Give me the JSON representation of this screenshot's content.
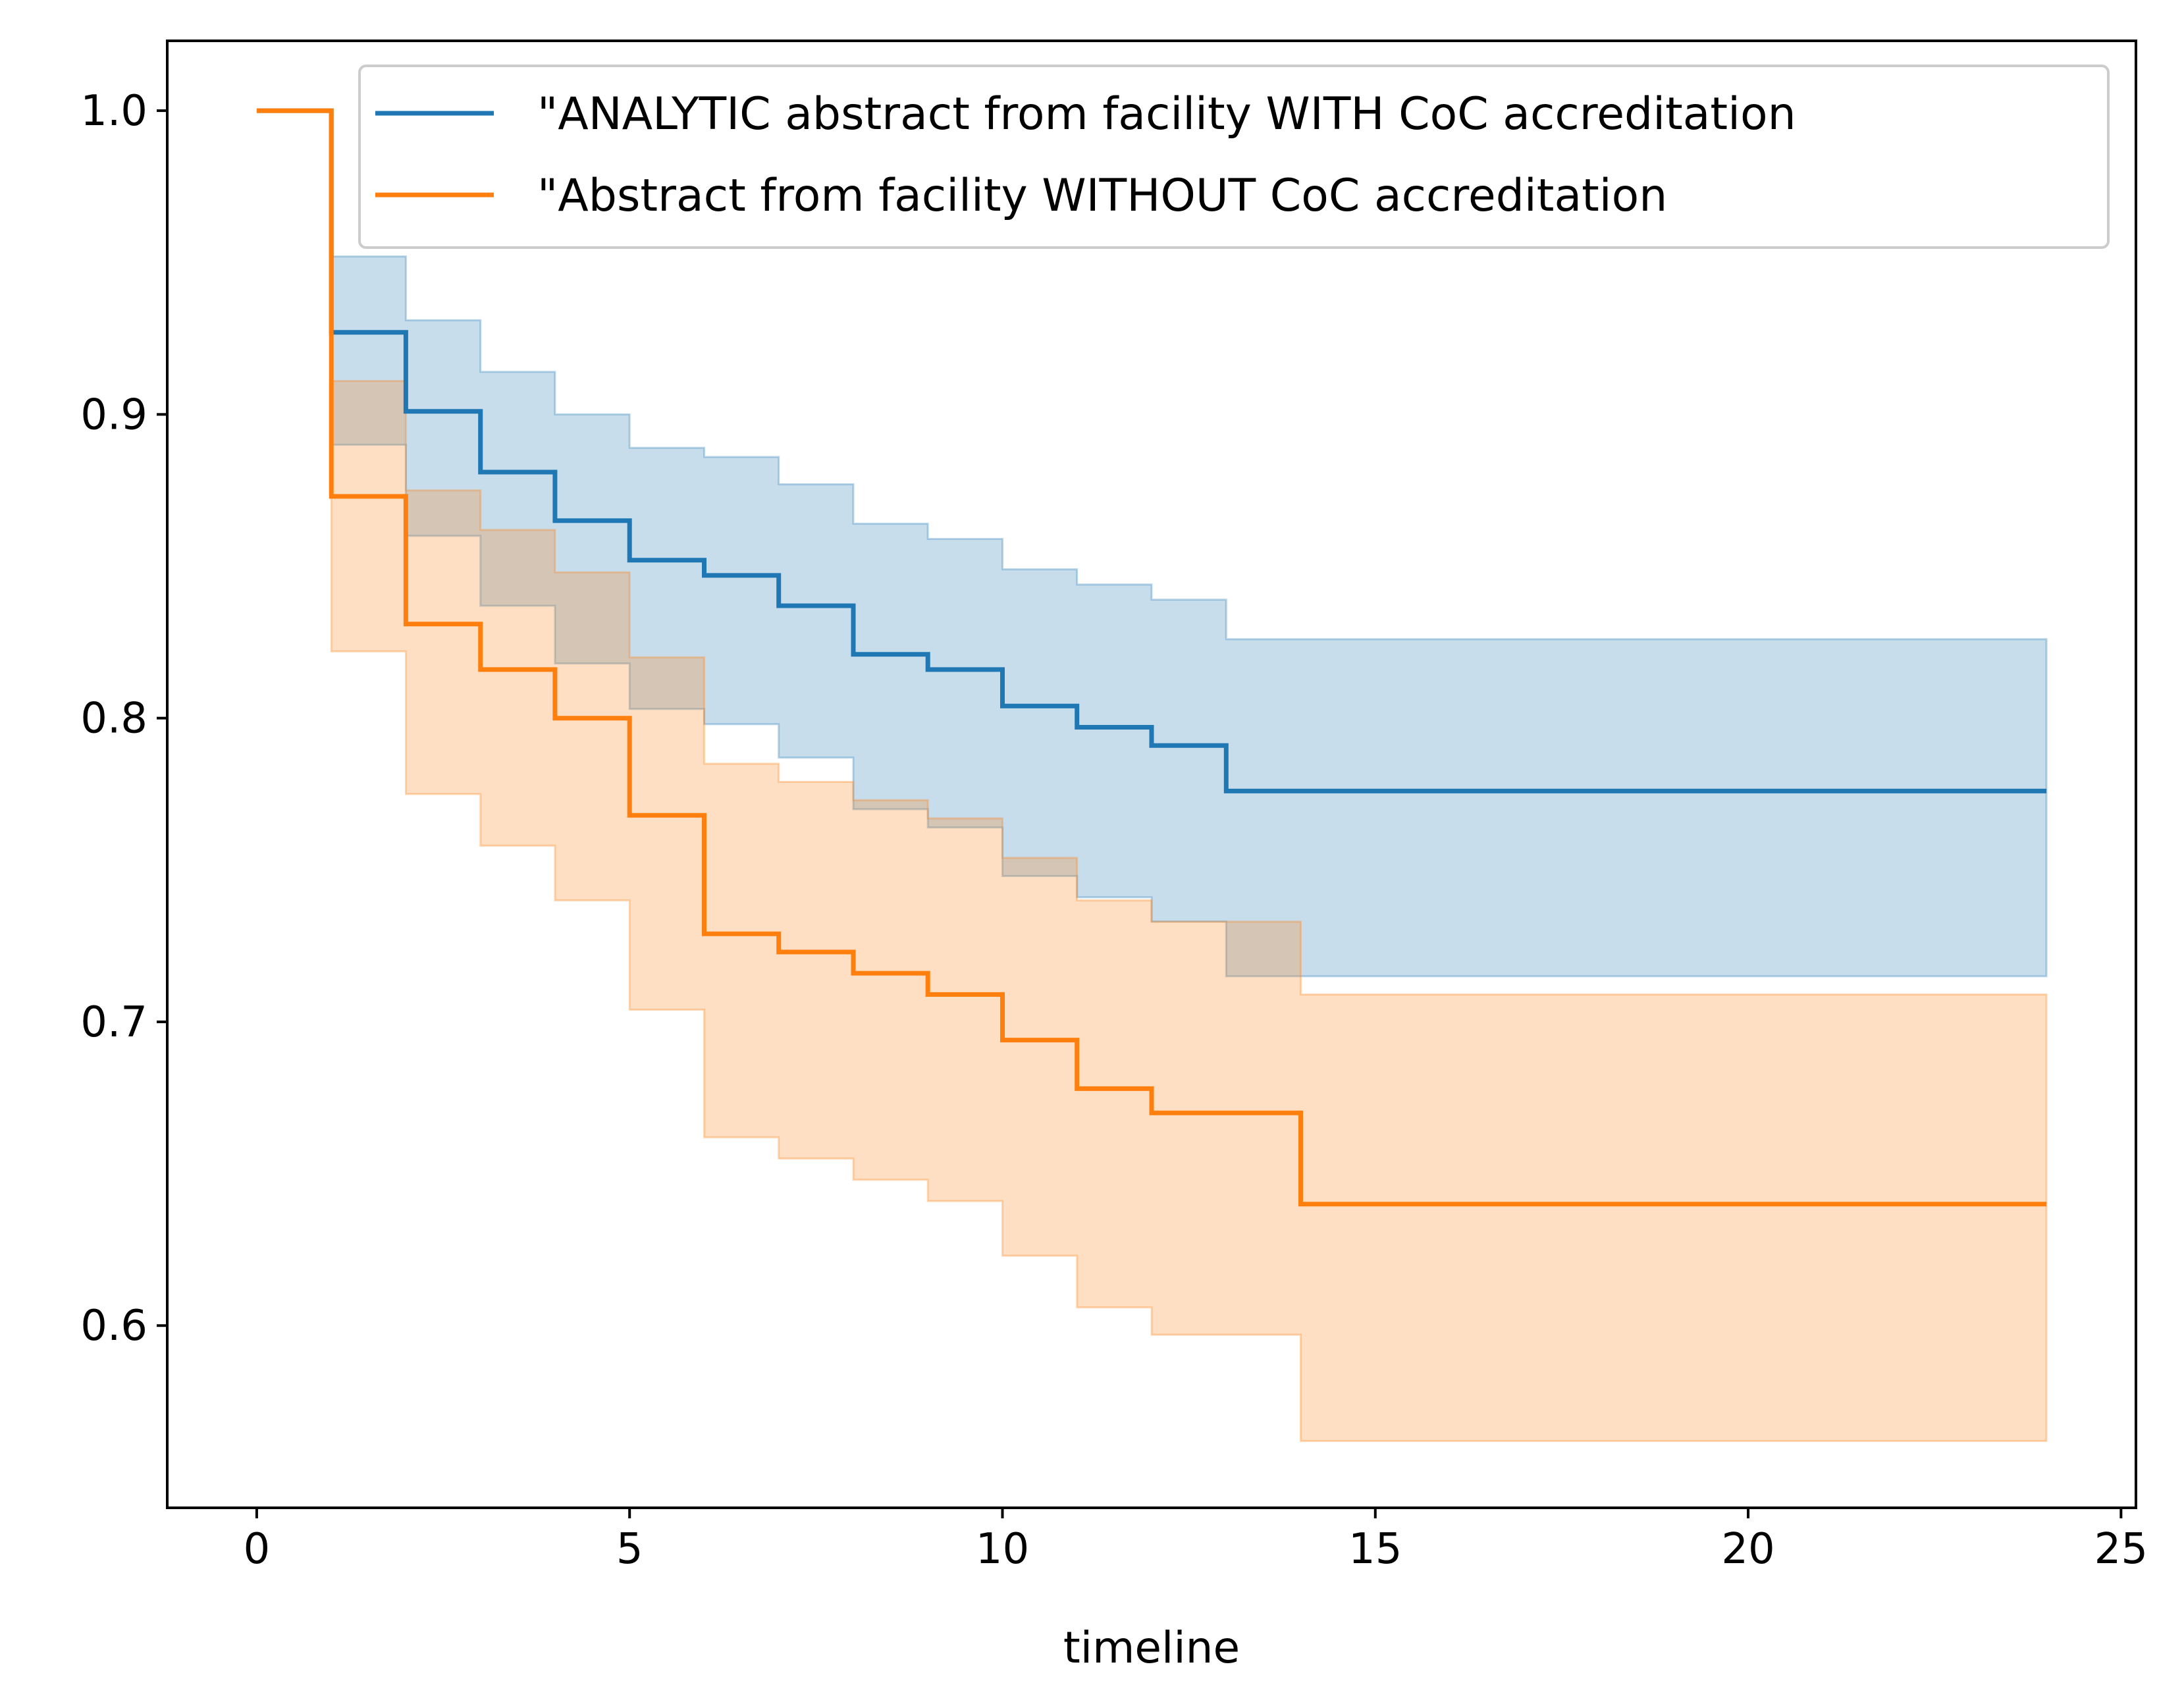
{
  "chart_data": {
    "type": "line",
    "subtype": "step (Kaplan-Meier survival curves with confidence bands)",
    "title": "",
    "xlabel": "timeline",
    "ylabel": "",
    "xlim": [
      -1.2,
      25.2
    ],
    "ylim": [
      0.54,
      1.023
    ],
    "xticks": [
      0,
      5,
      10,
      15,
      20,
      25
    ],
    "yticks": [
      0.6,
      0.7,
      0.8,
      0.9,
      1.0
    ],
    "xtick_labels": [
      "0",
      "5",
      "10",
      "15",
      "20",
      "25"
    ],
    "ytick_labels": [
      "0.6",
      "0.7",
      "0.8",
      "0.9",
      "1.0"
    ],
    "grid": false,
    "legend_position": "top-right",
    "series": [
      {
        "name": "\"ANALYTIC abstract from facility WITH CoC accreditation",
        "color": "#1f77b4",
        "x": [
          0,
          1,
          2,
          3,
          4,
          5,
          6,
          7,
          8,
          9,
          10,
          11,
          12,
          13,
          14,
          24
        ],
        "survival": [
          1.0,
          0.927,
          0.901,
          0.881,
          0.865,
          0.852,
          0.847,
          0.837,
          0.821,
          0.816,
          0.804,
          0.797,
          0.791,
          0.776,
          0.776,
          0.776
        ],
        "ci_upper": [
          1.0,
          0.952,
          0.931,
          0.914,
          0.9,
          0.889,
          0.886,
          0.877,
          0.864,
          0.859,
          0.849,
          0.844,
          0.839,
          0.826,
          0.826,
          0.826
        ],
        "ci_lower": [
          1.0,
          0.89,
          0.86,
          0.837,
          0.818,
          0.803,
          0.798,
          0.787,
          0.77,
          0.764,
          0.748,
          0.741,
          0.733,
          0.715,
          0.715,
          0.715
        ]
      },
      {
        "name": "\"Abstract from facility WITHOUT CoC accreditation",
        "color": "#ff7f0e",
        "x": [
          0,
          1,
          2,
          3,
          4,
          5,
          6,
          7,
          8,
          9,
          10,
          11,
          12,
          13,
          14,
          24
        ],
        "survival": [
          1.0,
          0.873,
          0.831,
          0.816,
          0.8,
          0.768,
          0.729,
          0.723,
          0.716,
          0.709,
          0.694,
          0.678,
          0.67,
          0.67,
          0.64,
          0.64
        ],
        "ci_upper": [
          1.0,
          0.911,
          0.875,
          0.862,
          0.848,
          0.82,
          0.785,
          0.779,
          0.773,
          0.767,
          0.754,
          0.74,
          0.733,
          0.733,
          0.709,
          0.709
        ],
        "ci_lower": [
          1.0,
          0.822,
          0.775,
          0.758,
          0.74,
          0.704,
          0.662,
          0.655,
          0.648,
          0.641,
          0.623,
          0.606,
          0.597,
          0.597,
          0.562,
          0.562
        ]
      }
    ]
  }
}
